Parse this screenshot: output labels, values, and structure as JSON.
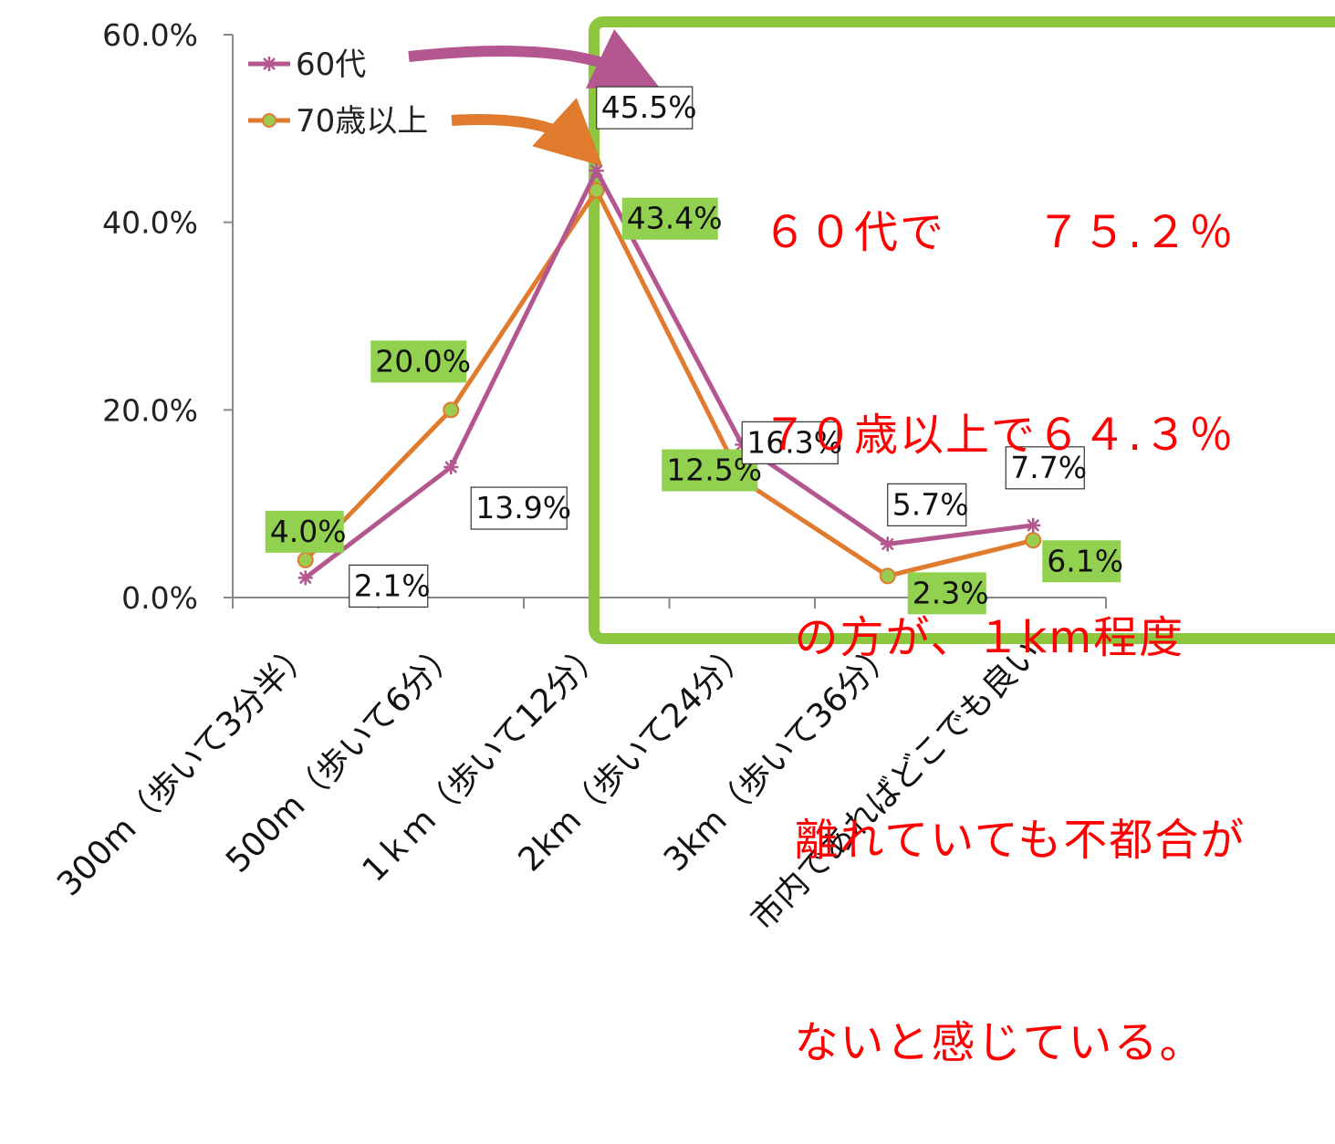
{
  "chart_data": {
    "type": "line",
    "title": "",
    "xlabel": "",
    "ylabel": "",
    "ylim": [
      0,
      60
    ],
    "yticks": [
      "0.0%",
      "20.0%",
      "40.0%",
      "60.0%"
    ],
    "ytick_values": [
      0,
      20,
      40,
      60
    ],
    "categories": [
      "300m（歩いて3分半）",
      "500m（歩いて6分）",
      "1ｋｍ（歩いて12分）",
      "2km（歩いて24分）",
      "3km（歩いて36分）",
      "市内であればどこでも良い"
    ],
    "category_labels_visible": [
      "300m（歩いて3分半）",
      "500m（歩いて6分）",
      "1ｋｍ（歩いて12分）",
      "2km（歩いて24分）",
      "3km（歩いて36分）",
      "市内であればどこでも良い"
    ],
    "grid": false,
    "legend_position": "top-left",
    "series": [
      {
        "name": "60代",
        "color": "#b4568f",
        "marker": "asterisk",
        "values": [
          2.1,
          13.9,
          45.5,
          16.3,
          5.7,
          7.7
        ],
        "labels": [
          "2.1%",
          "13.9%",
          "45.5%",
          "16.3%",
          "5.7%",
          "7.7%"
        ]
      },
      {
        "name": "70歳以上",
        "color": "#e07b2e",
        "marker": "circle",
        "values": [
          4.0,
          20.0,
          43.4,
          12.5,
          2.3,
          6.1
        ],
        "labels": [
          "4.0%",
          "20.0%",
          "43.4%",
          "12.5%",
          "2.3%",
          "6.1%"
        ]
      }
    ],
    "label_fill_60": "#ffffff",
    "label_fill_70": "#92d050",
    "highlight_color": "#8dc63f",
    "annotation": {
      "color": "#ff0000",
      "lines": [
        "６０代で　　７５.２％",
        "７０歳以上で６４.３％",
        "  の方が、１km程度",
        "  離れていても不都合が",
        "  ないと感じている。"
      ]
    }
  }
}
